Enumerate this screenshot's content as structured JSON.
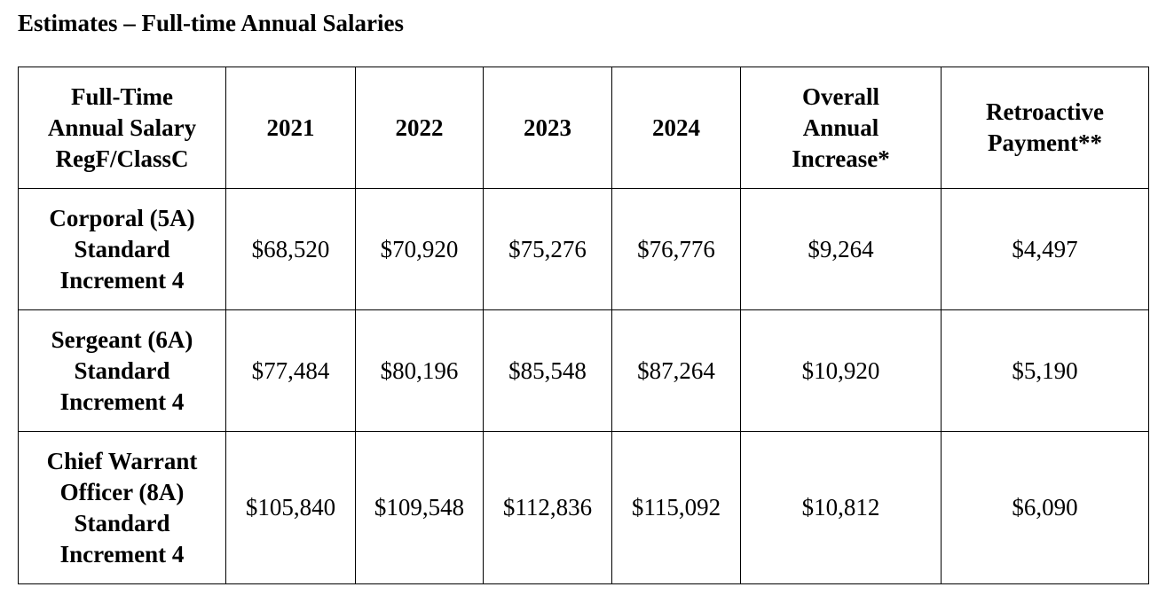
{
  "title": "Estimates – Full-time Annual Salaries",
  "table": {
    "headers": [
      [
        "Full-Time",
        "Annual Salary",
        "RegF/ClassC"
      ],
      [
        "2021"
      ],
      [
        "2022"
      ],
      [
        "2023"
      ],
      [
        "2024"
      ],
      [
        "Overall",
        "Annual",
        "Increase*"
      ],
      [
        "Retroactive",
        "Payment**"
      ]
    ],
    "rows": [
      {
        "label": [
          "Corporal (5A)",
          "Standard",
          "Increment 4"
        ],
        "y2021": "$68,520",
        "y2022": "$70,920",
        "y2023": "$75,276",
        "y2024": "$76,776",
        "overall": "$9,264",
        "retro": "$4,497"
      },
      {
        "label": [
          "Sergeant (6A)",
          "Standard",
          "Increment 4"
        ],
        "y2021": "$77,484",
        "y2022": "$80,196",
        "y2023": "$85,548",
        "y2024": "$87,264",
        "overall": "$10,920",
        "retro": "$5,190"
      },
      {
        "label": [
          "Chief Warrant",
          "Officer (8A)",
          "Standard",
          "Increment 4"
        ],
        "y2021": "$105,840",
        "y2022": "$109,548",
        "y2023": "$112,836",
        "y2024": "$115,092",
        "overall": "$10,812",
        "retro": "$6,090"
      }
    ]
  }
}
